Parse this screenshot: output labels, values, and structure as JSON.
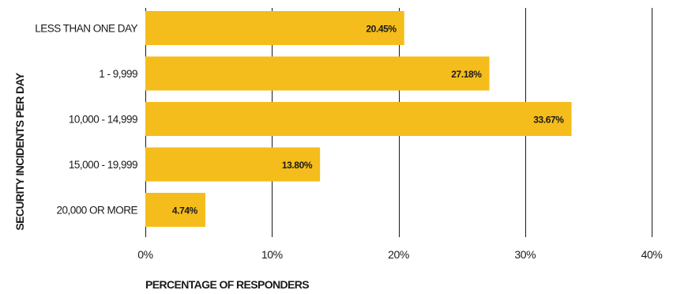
{
  "chart_data": {
    "type": "bar",
    "orientation": "horizontal",
    "categories": [
      "LESS THAN ONE DAY",
      "1 - 9,999",
      "10,000 - 14,999",
      "15,000 - 19,999",
      "20,000 OR MORE"
    ],
    "values": [
      20.45,
      27.18,
      33.67,
      13.8,
      4.74
    ],
    "value_labels": [
      "20.45%",
      "27.18%",
      "33.67%",
      "13.80%",
      "4.74%"
    ],
    "xlim": [
      0,
      40
    ],
    "x_ticks": [
      0,
      10,
      20,
      30,
      40
    ],
    "x_tick_labels": [
      "0%",
      "10%",
      "20%",
      "30%",
      "40%"
    ],
    "xlabel": "PERCENTAGE OF RESPONDERS",
    "ylabel": "SECURITY INCIDENTS PER DAY",
    "grid": true,
    "bar_color": "#f5bd1b",
    "text_color": "#1a1a1a"
  }
}
